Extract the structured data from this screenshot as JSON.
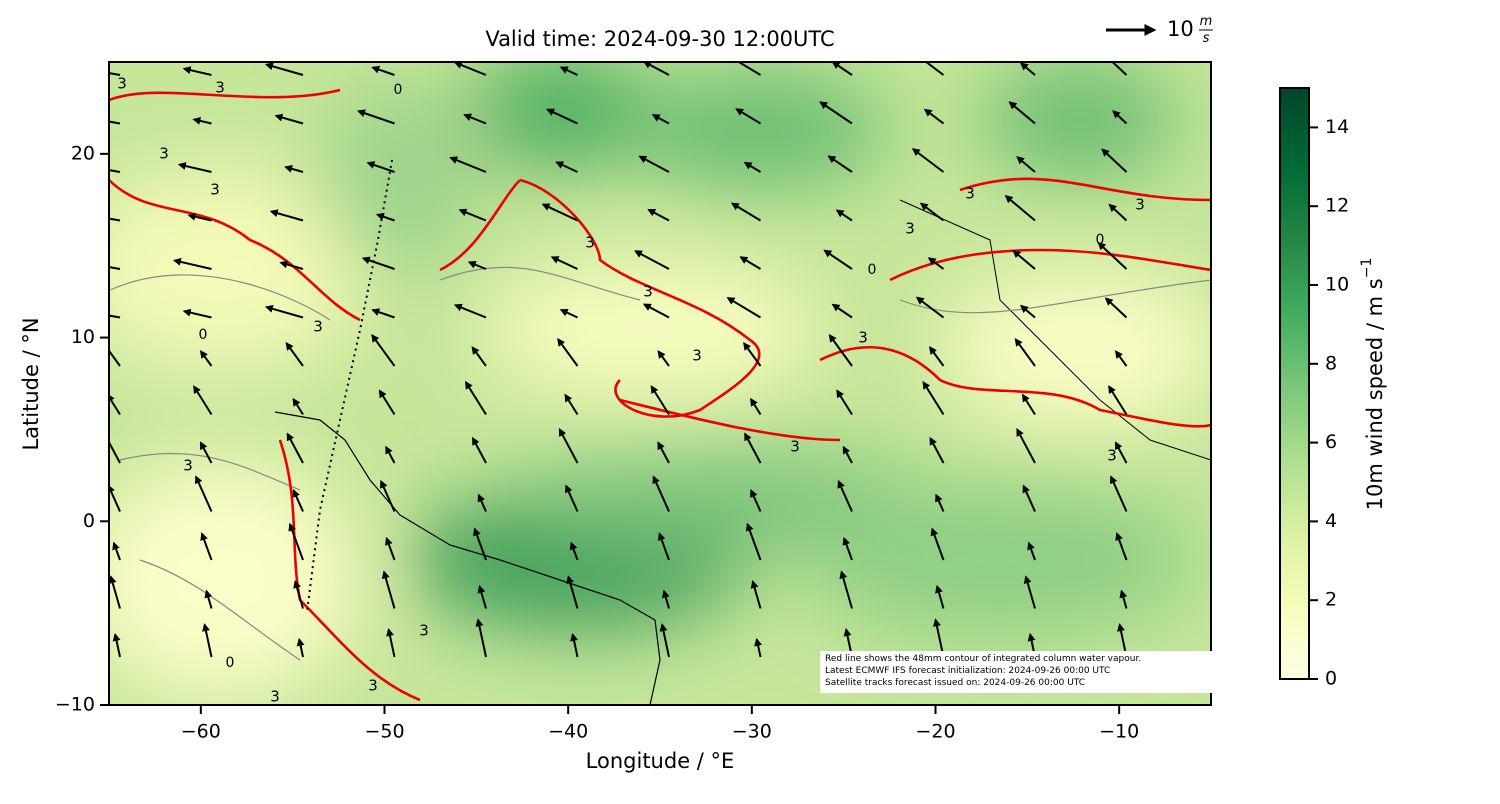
{
  "chart_data": {
    "type": "map",
    "title": "Valid time: 2024-09-30 12:00UTC",
    "x_label": "Longitude / °E",
    "y_label": "Latitude / °N",
    "xlim": [
      -65,
      -5
    ],
    "ylim": [
      -10,
      25
    ],
    "xticks": [
      {
        "value": -60,
        "label": "−60"
      },
      {
        "value": -50,
        "label": "−50"
      },
      {
        "value": -40,
        "label": "−40"
      },
      {
        "value": -30,
        "label": "−30"
      },
      {
        "value": -20,
        "label": "−20"
      },
      {
        "value": -10,
        "label": "−10"
      }
    ],
    "yticks": [
      {
        "value": -10,
        "label": "−10"
      },
      0,
      10,
      20
    ],
    "colorbar": {
      "label": "10m wind speed / m s",
      "label_exponent": "−1",
      "lim": [
        0,
        15
      ],
      "ticks": [
        0,
        2,
        4,
        6,
        8,
        10,
        12,
        14
      ],
      "colors": [
        "#ffffe5",
        "#f7fcb9",
        "#d9f0a3",
        "#addd8e",
        "#78c679",
        "#41ab5d",
        "#238443",
        "#006837",
        "#004529"
      ]
    },
    "contour_labels": {
      "water_vapour": "3",
      "land": "0"
    },
    "quiver_key": {
      "value": "10",
      "unit_top": "m",
      "unit_bottom": "s"
    },
    "annotation": [
      "Red line shows the 48mm contour of integrated column water vapour.",
      "Latest ECMWF IFS forecast initialization: 2024-09-26 00:00 UTC",
      "Satellite tracks forecast issued on: 2024-09-26 00:00 UTC"
    ]
  }
}
